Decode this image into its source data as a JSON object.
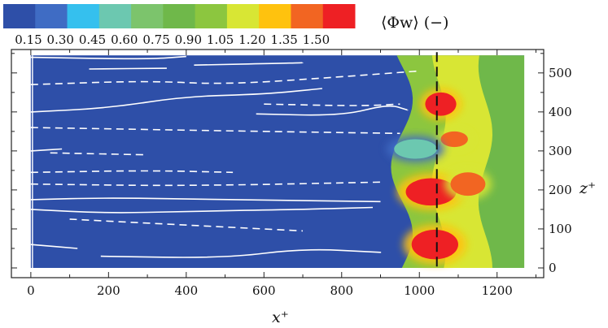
{
  "chart_data": {
    "type": "heatmap",
    "title": "",
    "colorbar": {
      "label": "⟨Φw⟩ (−)",
      "tick_labels": [
        "0.15",
        "0.30",
        "0.45",
        "0.60",
        "0.75",
        "0.90",
        "1.05",
        "1.20",
        "1.35",
        "1.50"
      ],
      "colors": [
        "#2e4fa8",
        "#3f6cc4",
        "#35c0ee",
        "#6cc8b0",
        "#7cc46c",
        "#6fb84a",
        "#8cc63f",
        "#d8e634",
        "#ffc20e",
        "#f26522",
        "#ee2024"
      ]
    },
    "xlabel": "x⁺",
    "ylabel": "z⁺",
    "xlim": [
      -50,
      1320
    ],
    "ylim": [
      -25,
      560
    ],
    "xticks": [
      0,
      200,
      400,
      600,
      800,
      1000,
      1200
    ],
    "yticks": [
      0,
      100,
      200,
      300,
      400,
      500
    ],
    "y_axis_side": "right",
    "domain": {
      "x": [
        0,
        1270
      ],
      "z": [
        0,
        545
      ]
    },
    "reference_line_x": 1045,
    "background_value": 0.15,
    "front_bands": [
      {
        "x0": 955,
        "x1": 1050,
        "color": "#8cc63f"
      },
      {
        "x0": 1050,
        "x1": 1170,
        "color": "#d8e634"
      },
      {
        "x0": 1170,
        "x1": 1270,
        "color": "#6fb84a"
      }
    ],
    "hot_spots": [
      {
        "x": 1040,
        "z": 60,
        "rx": 60,
        "rz": 38,
        "level": "1.50"
      },
      {
        "x": 1030,
        "z": 195,
        "rx": 65,
        "rz": 35,
        "level": "1.50"
      },
      {
        "x": 1125,
        "z": 215,
        "rx": 45,
        "rz": 30,
        "level": "1.35"
      },
      {
        "x": 1090,
        "z": 330,
        "rx": 35,
        "rz": 20,
        "level": "1.35"
      },
      {
        "x": 1055,
        "z": 420,
        "rx": 40,
        "rz": 30,
        "level": "1.50"
      },
      {
        "x": 990,
        "z": 305,
        "rx": 55,
        "rz": 25,
        "level": "0.45"
      }
    ],
    "contours_solid": [
      [
        [
          0,
          540
        ],
        [
          300,
          535
        ],
        [
          400,
          542
        ]
      ],
      [
        [
          150,
          510
        ],
        [
          350,
          512
        ]
      ],
      [
        [
          420,
          520
        ],
        [
          700,
          526
        ]
      ],
      [
        [
          0,
          400
        ],
        [
          200,
          410
        ],
        [
          400,
          440
        ],
        [
          600,
          445
        ],
        [
          750,
          460
        ]
      ],
      [
        [
          580,
          395
        ],
        [
          800,
          390
        ],
        [
          920,
          420
        ],
        [
          970,
          405
        ]
      ],
      [
        [
          0,
          300
        ],
        [
          80,
          305
        ]
      ],
      [
        [
          0,
          150
        ],
        [
          200,
          140
        ],
        [
          400,
          145
        ],
        [
          700,
          150
        ],
        [
          880,
          155
        ]
      ],
      [
        [
          0,
          60
        ],
        [
          120,
          50
        ]
      ],
      [
        [
          180,
          30
        ],
        [
          500,
          25
        ],
        [
          700,
          50
        ],
        [
          900,
          40
        ]
      ],
      [
        [
          0,
          175
        ],
        [
          200,
          180
        ],
        [
          500,
          175
        ],
        [
          900,
          170
        ]
      ]
    ],
    "contours_dashed": [
      [
        [
          0,
          470
        ],
        [
          300,
          480
        ],
        [
          500,
          470
        ],
        [
          800,
          490
        ],
        [
          1000,
          505
        ]
      ],
      [
        [
          600,
          420
        ],
        [
          850,
          415
        ],
        [
          950,
          420
        ]
      ],
      [
        [
          0,
          360
        ],
        [
          300,
          355
        ],
        [
          600,
          350
        ],
        [
          950,
          345
        ]
      ],
      [
        [
          0,
          245
        ],
        [
          300,
          250
        ],
        [
          520,
          245
        ]
      ],
      [
        [
          0,
          215
        ],
        [
          400,
          210
        ],
        [
          900,
          220
        ]
      ],
      [
        [
          100,
          125
        ],
        [
          300,
          115
        ],
        [
          500,
          105
        ],
        [
          700,
          95
        ]
      ],
      [
        [
          50,
          295
        ],
        [
          300,
          290
        ]
      ]
    ]
  }
}
